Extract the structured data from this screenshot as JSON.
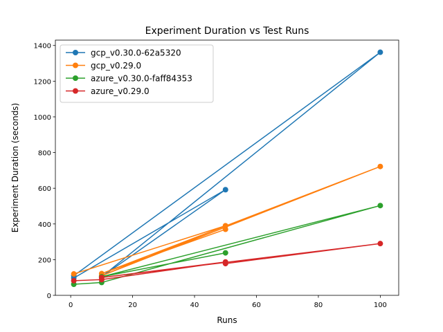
{
  "chart_data": {
    "type": "line",
    "title": "Experiment Duration vs Test Runs",
    "xlabel": "Runs",
    "ylabel": "Experiment Duration (seconds)",
    "xlim": [
      -4.95,
      105.95
    ],
    "ylim": [
      0,
      1430
    ],
    "xticks": [
      0,
      20,
      40,
      60,
      80,
      100
    ],
    "yticks": [
      0,
      200,
      400,
      600,
      800,
      1000,
      1200,
      1400
    ],
    "grid": false,
    "legend_position": "upper-left",
    "series": [
      {
        "name": "gcp_v0.30.0-62a5320",
        "color": "#1f77b4",
        "points": [
          [
            1,
            110
          ],
          [
            100,
            1362
          ],
          [
            10,
            104
          ],
          [
            50,
            592
          ],
          [
            1,
            97
          ]
        ]
      },
      {
        "name": "gcp_v0.29.0",
        "color": "#ff7f0e",
        "points": [
          [
            1,
            120
          ],
          [
            50,
            390
          ],
          [
            10,
            110
          ],
          [
            100,
            722
          ],
          [
            10,
            122
          ],
          [
            50,
            370
          ]
        ]
      },
      {
        "name": "azure_v0.30.0-faff84353",
        "color": "#2ca02c",
        "points": [
          [
            1,
            62
          ],
          [
            10,
            72
          ],
          [
            100,
            503
          ],
          [
            10,
            104
          ],
          [
            50,
            238
          ]
        ]
      },
      {
        "name": "azure_v0.29.0",
        "color": "#d62728",
        "points": [
          [
            1,
            82
          ],
          [
            10,
            88
          ],
          [
            50,
            187
          ],
          [
            10,
            100
          ],
          [
            100,
            290
          ],
          [
            50,
            178
          ]
        ]
      }
    ]
  }
}
